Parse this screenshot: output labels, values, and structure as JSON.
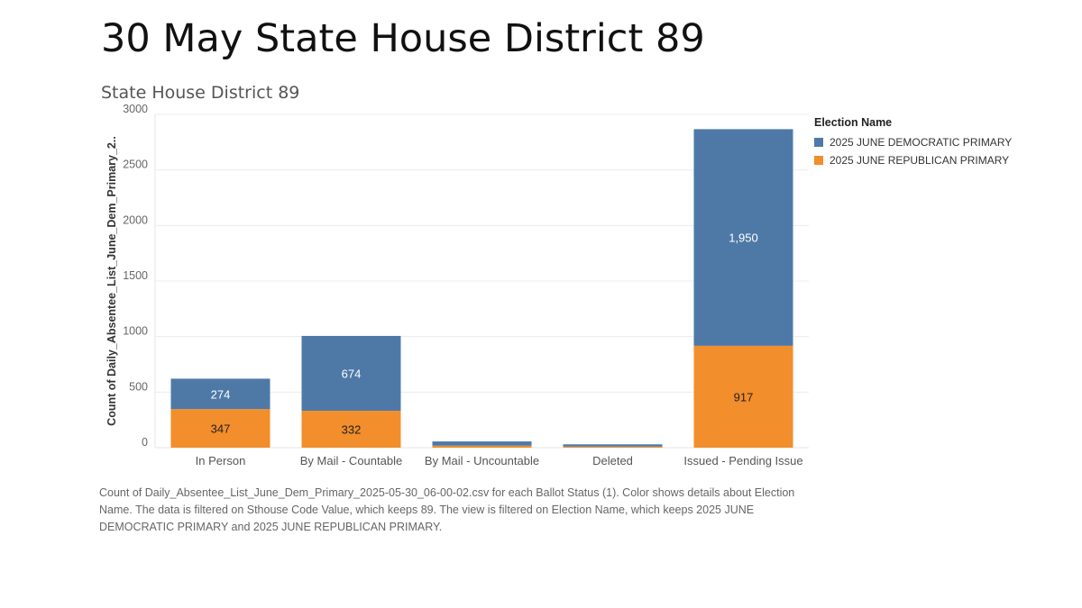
{
  "slide": {
    "title": "30 May State House District 89"
  },
  "chart_data": {
    "type": "bar",
    "stacked": true,
    "title": "State House District 89",
    "ylabel": "Count of Daily_Absentee_List_June_Dem_Primary_2..",
    "xlabel": "",
    "categories": [
      "In Person",
      "By Mail - Countable",
      "By Mail - Uncountable",
      "Deleted",
      "Issued - Pending Issue"
    ],
    "series": [
      {
        "name": "2025 JUNE REPUBLICAN PRIMARY",
        "color": "#f28e2b",
        "values": [
          347,
          332,
          18,
          10,
          917
        ],
        "labels": [
          "347",
          "332",
          "",
          "",
          "917"
        ]
      },
      {
        "name": "2025 JUNE DEMOCRATIC PRIMARY",
        "color": "#4e79a7",
        "values": [
          274,
          674,
          38,
          20,
          1950
        ],
        "labels": [
          "274",
          "674",
          "",
          "",
          "1,950"
        ]
      }
    ],
    "yticks": [
      0,
      500,
      1000,
      1500,
      2000,
      2500,
      3000
    ],
    "ylim": [
      0,
      3000
    ],
    "grid": true,
    "legend": {
      "title": "Election Name",
      "position": "right",
      "entries": [
        {
          "name": "2025 JUNE DEMOCRATIC PRIMARY",
          "color": "#4e79a7"
        },
        {
          "name": "2025 JUNE REPUBLICAN PRIMARY",
          "color": "#f28e2b"
        }
      ]
    }
  },
  "caption": "Count of Daily_Absentee_List_June_Dem_Primary_2025-05-30_06-00-02.csv for each Ballot Status (1).  Color shows details about Election Name. The data is filtered on Sthouse Code Value, which keeps 89. The view is filtered on Election Name, which keeps 2025 JUNE DEMOCRATIC PRIMARY and 2025 JUNE REPUBLICAN PRIMARY."
}
